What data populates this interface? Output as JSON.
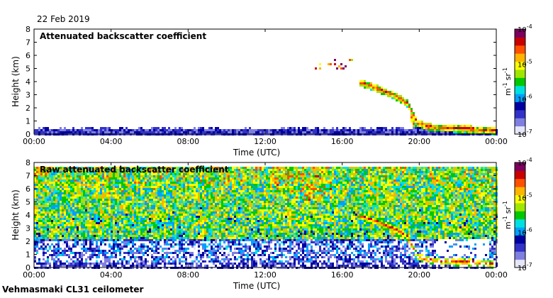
{
  "date_label": "22 Feb 2019",
  "footer_label": "Vehmasmaki CL31 ceilometer",
  "colors": {
    "scale": [
      "#e6e6fa",
      "#7f7fe0",
      "#3232c8",
      "#0000a0",
      "#00a0ff",
      "#00e0e0",
      "#00c800",
      "#a0e600",
      "#ffff00",
      "#ffb400",
      "#ff5000",
      "#c80000",
      "#7d0060"
    ],
    "missing": "#ffffff"
  },
  "chart_data": [
    {
      "type": "heatmap",
      "title": "Attenuated backscatter coefficient",
      "xlabel": "Time (UTC)",
      "ylabel": "Height (km)",
      "x_ticks": [
        "00:00",
        "04:00",
        "08:00",
        "12:00",
        "16:00",
        "20:00",
        "00:00"
      ],
      "x_tick_hours": [
        0,
        4,
        8,
        12,
        16,
        20,
        24
      ],
      "y_ticks": [
        "0",
        "1",
        "2",
        "3",
        "4",
        "5",
        "6",
        "7",
        "8"
      ],
      "xlim_hours": [
        0,
        24
      ],
      "ylim_km": [
        0,
        8
      ],
      "colorbar": {
        "label_unit": "m",
        "label_exp1": "-1",
        "label_sr": "sr",
        "label_exp2": "-1",
        "ticks": [
          {
            "value": 0.0001,
            "base": "10",
            "exp": "-4"
          },
          {
            "value": 1e-05,
            "base": "10",
            "exp": "-5"
          },
          {
            "value": 1e-06,
            "base": "10",
            "exp": "-6"
          },
          {
            "value": 1e-07,
            "base": "10",
            "exp": "-7"
          }
        ],
        "range": [
          1e-07,
          0.0001
        ],
        "scale": "log"
      },
      "features": {
        "boundary_layer_top_km": 0.45,
        "cloud_layer": [
          {
            "t": 16.9,
            "h": 4.0
          },
          {
            "t": 17.5,
            "h": 3.7
          },
          {
            "t": 18.2,
            "h": 3.3
          },
          {
            "t": 18.8,
            "h": 2.9
          },
          {
            "t": 19.4,
            "h": 2.4
          },
          {
            "t": 19.9,
            "h": 0.9
          },
          {
            "t": 20.5,
            "h": 0.6
          },
          {
            "t": 21.5,
            "h": 0.5
          },
          {
            "t": 22.5,
            "h": 0.45
          },
          {
            "t": 24.0,
            "h": 0.3
          }
        ],
        "elevated_echo_km": [
          5.0,
          5.8
        ],
        "elevated_echo_hours": [
          14.6,
          16.6
        ]
      }
    },
    {
      "type": "heatmap",
      "title": "Raw attenuated backscatter coefficient",
      "xlabel": "Time (UTC)",
      "ylabel": "Height (km)",
      "x_ticks": [
        "00:00",
        "04:00",
        "08:00",
        "12:00",
        "16:00",
        "20:00",
        "00:00"
      ],
      "x_tick_hours": [
        0,
        4,
        8,
        12,
        16,
        20,
        24
      ],
      "y_ticks": [
        "0",
        "1",
        "2",
        "3",
        "4",
        "5",
        "6",
        "7",
        "8"
      ],
      "xlim_hours": [
        0,
        24
      ],
      "ylim_km": [
        0,
        8
      ],
      "colorbar": {
        "label_unit": "m",
        "label_exp1": "-1",
        "label_sr": "sr",
        "label_exp2": "-1",
        "ticks": [
          {
            "value": 0.0001,
            "base": "10",
            "exp": "-4"
          },
          {
            "value": 1e-05,
            "base": "10",
            "exp": "-5"
          },
          {
            "value": 1e-06,
            "base": "10",
            "exp": "-6"
          },
          {
            "value": 1e-07,
            "base": "10",
            "exp": "-7"
          }
        ],
        "range": [
          1e-07,
          0.0001
        ],
        "scale": "log"
      },
      "features": {
        "data_top_km": 7.7,
        "cloud_layer": [
          {
            "t": 16.9,
            "h": 4.0
          },
          {
            "t": 17.5,
            "h": 3.7
          },
          {
            "t": 18.2,
            "h": 3.3
          },
          {
            "t": 18.8,
            "h": 2.9
          },
          {
            "t": 19.4,
            "h": 2.4
          },
          {
            "t": 19.9,
            "h": 0.9
          },
          {
            "t": 20.5,
            "h": 0.6
          },
          {
            "t": 21.5,
            "h": 0.5
          },
          {
            "t": 22.5,
            "h": 0.45
          },
          {
            "t": 24.0,
            "h": 0.3
          }
        ],
        "gap_hours": [
          20.8,
          23.6
        ],
        "gap_km": [
          0.9,
          2.1
        ]
      }
    }
  ]
}
